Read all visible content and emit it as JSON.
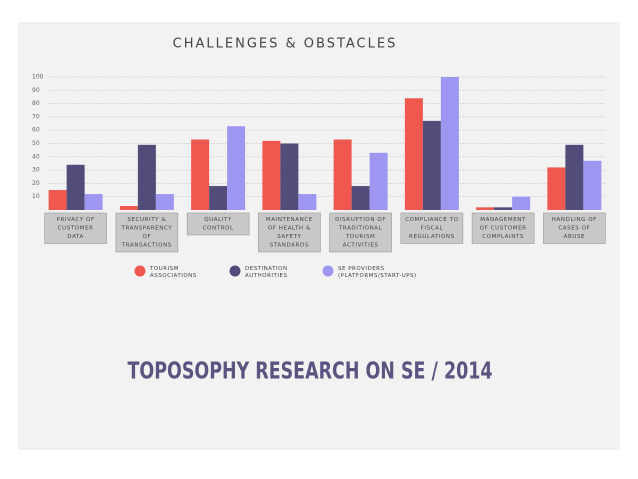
{
  "chart_data": {
    "type": "bar",
    "title": "CHALLENGES & OBSTACLES",
    "categories": [
      "PRIVACY OF\nCUSTOMER\nDATA",
      "SECURITY &\nTRANSPARENCY\nOF\nTRANSACTIONS",
      "QUALITY\nCONTROL",
      "MAINTENANCE\nOF HEALTH &\nSAFETY\nSTANDARDS",
      "DISRUPTION OF\nTRADITIONAL\nTOURISM\nACTIVITIES",
      "COMPLIANCE TO\nFISCAL\nREGULATIONS",
      "MANAGEMENT\nOF CUSTOMER\nCOMPLAINTS",
      "HANDLING OF\nCASES OF\nABUSE"
    ],
    "series": [
      {
        "name": "TOURISM\nASSOCIATIONS",
        "color": "#f0574f",
        "values": [
          15,
          3,
          53,
          52,
          53,
          84,
          2,
          32
        ]
      },
      {
        "name": "DESTINATION\nAUTHORITIES",
        "color": "#514c7a",
        "values": [
          34,
          49,
          18,
          50,
          18,
          67,
          2,
          49
        ]
      },
      {
        "name": "SE PROVIDERS\n(PLATFORMS/START-UPS)",
        "color": "#9d97f2",
        "values": [
          12,
          12,
          63,
          12,
          43,
          100,
          10,
          37
        ]
      }
    ],
    "ylim": [
      0,
      100
    ],
    "yticks": [
      10,
      20,
      30,
      40,
      50,
      60,
      70,
      80,
      90,
      100
    ],
    "grid": true
  },
  "footer": "TOPOSOPHY RESEARCH ON SE / 2014"
}
